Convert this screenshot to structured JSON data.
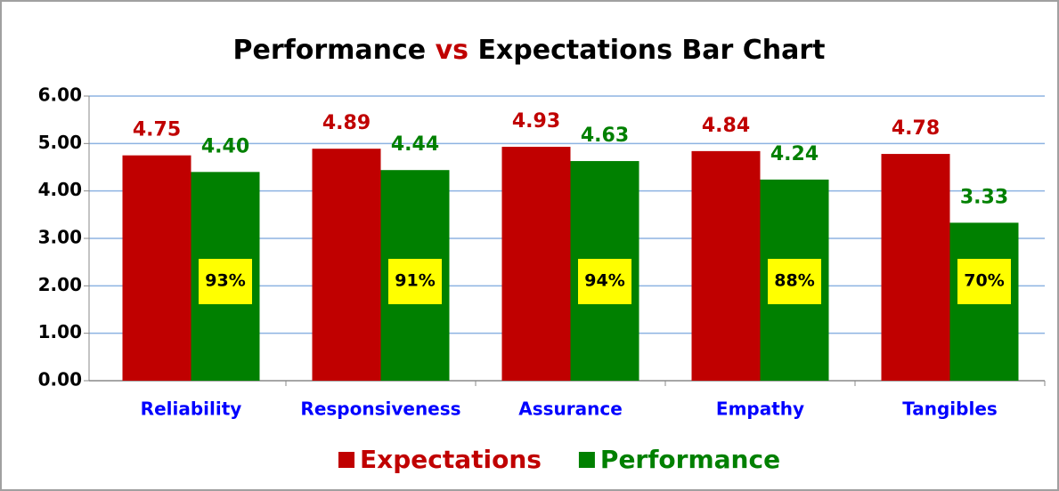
{
  "chart_data": {
    "type": "bar",
    "title_parts": [
      "Performance",
      "vs",
      "Expectations Bar Chart"
    ],
    "title_colors": [
      "#000000",
      "#c00000",
      "#000000"
    ],
    "categories": [
      "Reliability",
      "Responsiveness",
      "Assurance",
      "Empathy",
      "Tangibles"
    ],
    "series": [
      {
        "name": "Expectations",
        "color": "#c00000",
        "values": [
          4.75,
          4.89,
          4.93,
          4.84,
          4.78
        ],
        "value_labels": [
          "4.75",
          "4.89",
          "4.93",
          "4.84",
          "4.78"
        ]
      },
      {
        "name": "Performance",
        "color": "#008000",
        "values": [
          4.4,
          4.44,
          4.63,
          4.24,
          3.33
        ],
        "value_labels": [
          "4.40",
          "4.44",
          "4.63",
          "4.24",
          "3.33"
        ]
      }
    ],
    "ratio": {
      "values": [
        93,
        91,
        94,
        88,
        70
      ],
      "value_labels": [
        "93%",
        "91%",
        "94%",
        "88%",
        "70%"
      ],
      "color": "#ffff00"
    },
    "ylim": [
      0,
      6
    ],
    "yticks": [
      {
        "value": 0,
        "label": "0.00"
      },
      {
        "value": 1,
        "label": "1.00"
      },
      {
        "value": 2,
        "label": "2.00"
      },
      {
        "value": 3,
        "label": "3.00"
      },
      {
        "value": 4,
        "label": "4.00"
      },
      {
        "value": 5,
        "label": "5.00"
      },
      {
        "value": 6,
        "label": "6.00"
      }
    ],
    "grid": true,
    "grid_color": "#8db3e2",
    "category_color": "#0000ff",
    "legend": "bottom"
  }
}
